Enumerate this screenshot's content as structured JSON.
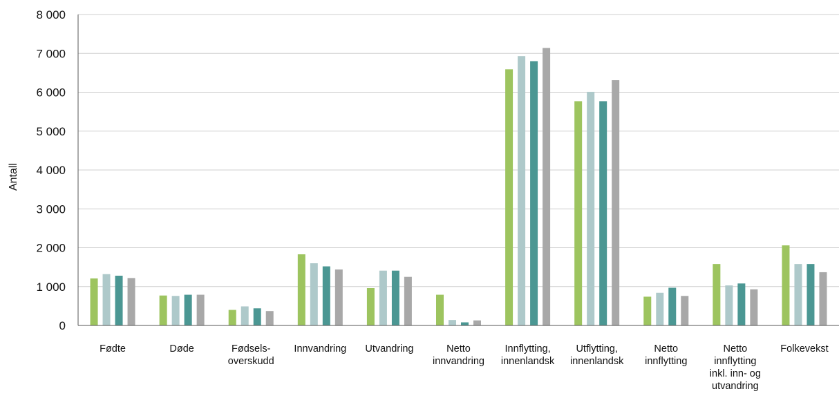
{
  "chart_data": {
    "type": "bar",
    "ylabel": "Antall",
    "ylim": [
      0,
      8000
    ],
    "yticks": [
      0,
      1000,
      2000,
      3000,
      4000,
      5000,
      6000,
      7000,
      8000
    ],
    "ytick_labels": [
      "0",
      "1 000",
      "2 000",
      "3 000",
      "4 000",
      "5 000",
      "6 000",
      "7 000",
      "8 000"
    ],
    "grid": true,
    "legend": "none",
    "categories": [
      [
        "Fødte"
      ],
      [
        "Døde"
      ],
      [
        "Fødsels-",
        "overskudd"
      ],
      [
        "Innvandring"
      ],
      [
        "Utvandring"
      ],
      [
        "Netto",
        "innvandring"
      ],
      [
        "Innflytting,",
        "innenlandsk"
      ],
      [
        "Utflytting,",
        "innenlandsk"
      ],
      [
        "Netto",
        "innflytting"
      ],
      [
        "Netto",
        "innflytting",
        "inkl. inn- og",
        "utvandring"
      ],
      [
        "Folkevekst"
      ]
    ],
    "series": [
      {
        "color": "#9dc45f",
        "values": [
          1210,
          770,
          400,
          1830,
          960,
          790,
          6590,
          5770,
          740,
          1580,
          2060
        ]
      },
      {
        "color": "#aec9ca",
        "values": [
          1320,
          760,
          490,
          1600,
          1410,
          140,
          6930,
          6010,
          840,
          1030,
          1580
        ]
      },
      {
        "color": "#4b9793",
        "values": [
          1280,
          790,
          440,
          1520,
          1410,
          80,
          6800,
          5770,
          970,
          1080,
          1580
        ]
      },
      {
        "color": "#a8a8a8",
        "values": [
          1220,
          790,
          370,
          1440,
          1250,
          130,
          7140,
          6310,
          760,
          930,
          1370
        ]
      }
    ],
    "gridline_color": "#cfcfcf",
    "axis_color": "#555555"
  }
}
